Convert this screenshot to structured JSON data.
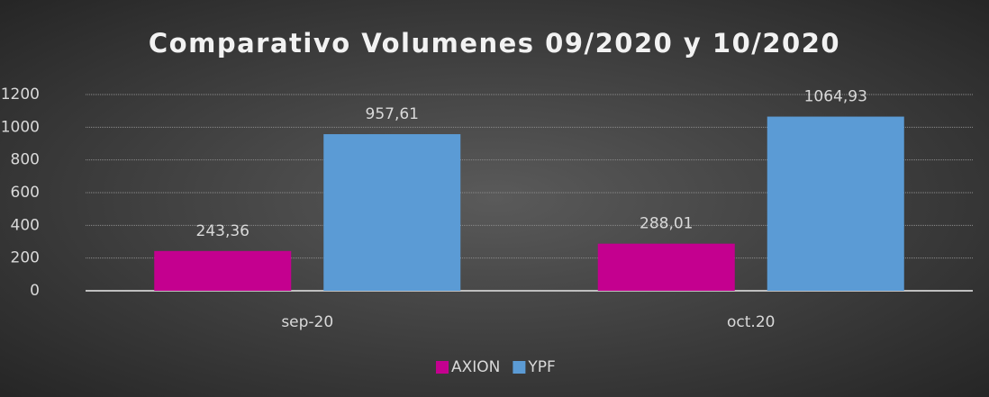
{
  "chart_data": {
    "type": "bar",
    "title": "Comparativo Volumenes 09/2020 y 10/2020",
    "categories": [
      "sep-20",
      "oct.20"
    ],
    "series": [
      {
        "name": "AXION",
        "color": "#c4008f",
        "values": [
          243.36,
          288.01
        ],
        "value_labels": [
          "243,36",
          "288,01"
        ]
      },
      {
        "name": "YPF",
        "color": "#5b9bd5",
        "values": [
          957.61,
          1064.93
        ],
        "value_labels": [
          "957,61",
          "1064,93"
        ]
      }
    ],
    "ylim": [
      0,
      1200
    ],
    "yticks": [
      0,
      200,
      400,
      600,
      800,
      1000,
      1200
    ],
    "grid": true,
    "legend": "bottom"
  }
}
